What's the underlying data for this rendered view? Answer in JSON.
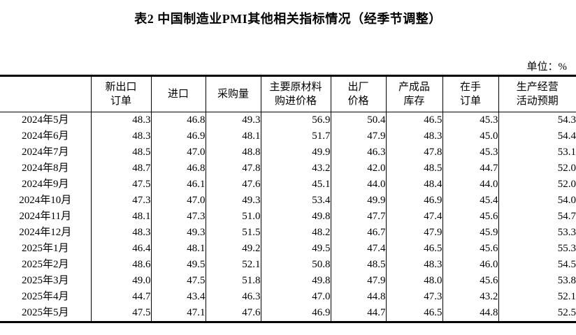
{
  "title": "表2 中国制造业PMI其他相关指标情况（经季节调整）",
  "unit_label": "单位：%",
  "table": {
    "columns": [
      "",
      "新出口\n订单",
      "进口",
      "采购量",
      "主要原材料\n购进价格",
      "出厂\n价格",
      "产成品\n库存",
      "在手\n订单",
      "生产经营\n活动预期"
    ],
    "rows": [
      {
        "label": "2024年5月",
        "values": [
          "48.3",
          "46.8",
          "49.3",
          "56.9",
          "50.4",
          "46.5",
          "45.3",
          "54.3"
        ]
      },
      {
        "label": "2024年6月",
        "values": [
          "48.3",
          "46.9",
          "48.1",
          "51.7",
          "47.9",
          "48.3",
          "45.0",
          "54.4"
        ]
      },
      {
        "label": "2024年7月",
        "values": [
          "48.5",
          "47.0",
          "48.8",
          "49.9",
          "46.3",
          "47.8",
          "45.3",
          "53.1"
        ]
      },
      {
        "label": "2024年8月",
        "values": [
          "48.7",
          "46.8",
          "47.8",
          "43.2",
          "42.0",
          "48.5",
          "44.7",
          "52.0"
        ]
      },
      {
        "label": "2024年9月",
        "values": [
          "47.5",
          "46.1",
          "47.6",
          "45.1",
          "44.0",
          "48.4",
          "44.0",
          "52.0"
        ]
      },
      {
        "label": "2024年10月",
        "values": [
          "47.3",
          "47.0",
          "49.3",
          "53.4",
          "49.9",
          "46.9",
          "45.4",
          "54.0"
        ]
      },
      {
        "label": "2024年11月",
        "values": [
          "48.1",
          "47.3",
          "51.0",
          "49.8",
          "47.7",
          "47.4",
          "45.6",
          "54.7"
        ]
      },
      {
        "label": "2024年12月",
        "values": [
          "48.3",
          "49.3",
          "51.5",
          "48.2",
          "46.7",
          "47.9",
          "45.9",
          "53.3"
        ]
      },
      {
        "label": "2025年1月",
        "values": [
          "46.4",
          "48.1",
          "49.2",
          "49.5",
          "47.4",
          "46.5",
          "45.6",
          "55.3"
        ]
      },
      {
        "label": "2025年2月",
        "values": [
          "48.6",
          "49.5",
          "52.1",
          "50.8",
          "48.5",
          "48.3",
          "46.0",
          "54.5"
        ]
      },
      {
        "label": "2025年3月",
        "values": [
          "49.0",
          "47.5",
          "51.8",
          "49.8",
          "47.9",
          "48.0",
          "45.6",
          "53.8"
        ]
      },
      {
        "label": "2025年4月",
        "values": [
          "44.7",
          "43.4",
          "46.3",
          "47.0",
          "44.8",
          "47.3",
          "43.2",
          "52.1"
        ]
      },
      {
        "label": "2025年5月",
        "values": [
          "47.5",
          "47.1",
          "47.6",
          "46.9",
          "44.7",
          "46.5",
          "44.8",
          "52.5"
        ]
      }
    ]
  }
}
